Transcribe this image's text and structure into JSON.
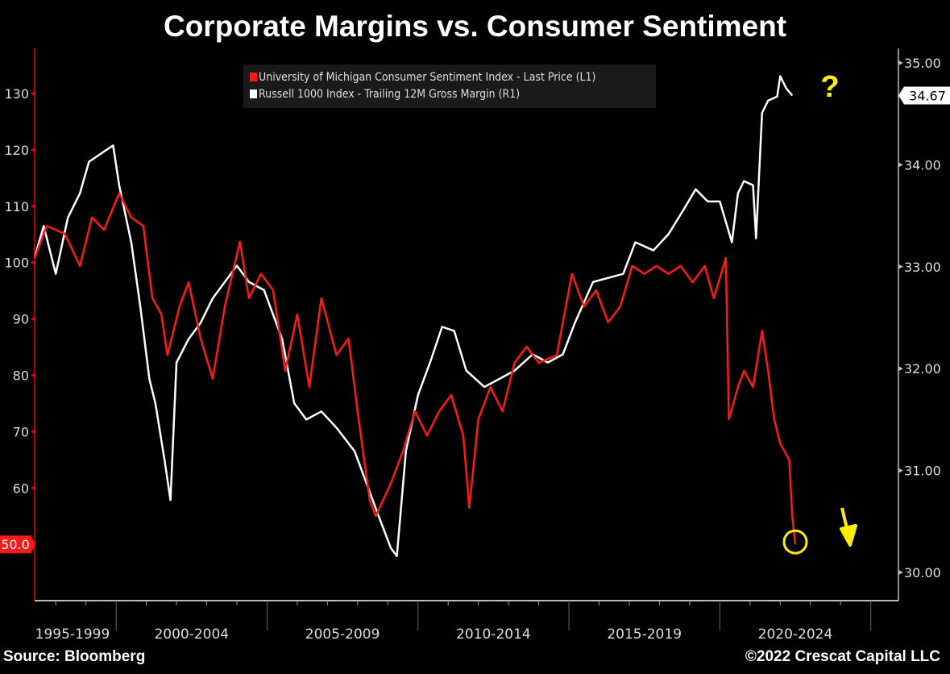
{
  "chart_data": {
    "type": "line",
    "title": "Corporate Margins vs. Consumer Sentiment",
    "source": "Source: Bloomberg",
    "copyright": "©2022 Crescat Capital LLC",
    "legend_placement": "top-center",
    "grid": false,
    "colors": {
      "sentiment": "#ff1a1a",
      "margin": "#ffffff",
      "annotation": "#ffee00",
      "background": "#000000"
    },
    "x_range": [
      1997.3,
      2026.2
    ],
    "x_tick_labels": [
      "1995-1999",
      "2000-2004",
      "2005-2009",
      "2010-2014",
      "2015-2019",
      "2020-2024"
    ],
    "left_axis": {
      "range": [
        40,
        140
      ],
      "ticks": [
        "130",
        "120",
        "110",
        "100",
        "90",
        "80",
        "70",
        "60"
      ],
      "last_value_label": "50.0"
    },
    "right_axis": {
      "range": [
        29.72,
        35.25
      ],
      "ticks": [
        "35.00",
        "34.00",
        "33.00",
        "32.00",
        "31.00",
        "30.00"
      ],
      "last_value_label": "34.67"
    },
    "series": [
      {
        "name": "University of Michigan Consumer Sentiment Index - Last Price (L1)",
        "axis": "left",
        "x": [
          1997.3,
          1997.7,
          1998.3,
          1998.8,
          1999.2,
          1999.6,
          2000.1,
          2000.5,
          2000.9,
          2001.2,
          2001.5,
          2001.7,
          2002.1,
          2002.4,
          2002.8,
          2003.2,
          2003.6,
          2004.1,
          2004.4,
          2004.8,
          2005.2,
          2005.6,
          2006.0,
          2006.4,
          2006.8,
          2007.3,
          2007.7,
          2008.0,
          2008.4,
          2008.6,
          2009.1,
          2009.5,
          2009.9,
          2010.3,
          2010.7,
          2011.1,
          2011.5,
          2011.7,
          2012.0,
          2012.4,
          2012.8,
          2013.2,
          2013.6,
          2014.0,
          2014.6,
          2015.1,
          2015.5,
          2015.9,
          2016.3,
          2016.7,
          2017.1,
          2017.5,
          2017.9,
          2018.3,
          2018.7,
          2019.1,
          2019.5,
          2019.8,
          2020.2,
          2020.3,
          2020.6,
          2020.8,
          2021.1,
          2021.4,
          2021.6,
          2021.8,
          2022.0,
          2022.3,
          2022.4,
          2022.5
        ],
        "y": [
          100.8,
          106.5,
          105.1,
          99.4,
          108,
          105.8,
          112.3,
          108,
          106.5,
          93.7,
          90.8,
          83.6,
          92.2,
          96.5,
          86.5,
          79.4,
          92.2,
          103.7,
          93.7,
          98,
          95.1,
          80.8,
          90.8,
          77.9,
          93.7,
          83.6,
          86.5,
          73.6,
          57.9,
          55.0,
          60.8,
          66.5,
          73.6,
          69.3,
          73.6,
          76.5,
          69.3,
          56.5,
          72.2,
          77.9,
          73.6,
          82.2,
          85.1,
          82.2,
          83.6,
          98,
          92.2,
          95.1,
          89.4,
          92.2,
          99.4,
          98,
          99.4,
          98,
          99.4,
          96.5,
          99.4,
          93.7,
          100.8,
          72.2,
          77.9,
          80.8,
          77.9,
          87.9,
          80.8,
          72.2,
          67.9,
          65.0,
          55.0,
          50.0
        ]
      },
      {
        "name": "Russell 1000 Index - Trailing 12M Gross Margin (R1)",
        "axis": "right",
        "x": [
          1997.3,
          1997.6,
          1998.0,
          1998.4,
          1998.8,
          1999.1,
          1999.5,
          1999.9,
          2000.1,
          2000.5,
          2000.8,
          2001.1,
          2001.3,
          2001.6,
          2001.8,
          2002.0,
          2002.4,
          2002.8,
          2003.2,
          2003.6,
          2004.0,
          2004.4,
          2004.9,
          2005.5,
          2005.9,
          2006.3,
          2006.8,
          2007.3,
          2007.9,
          2008.3,
          2008.7,
          2009.1,
          2009.3,
          2009.6,
          2010.0,
          2010.4,
          2010.8,
          2011.2,
          2011.6,
          2012.2,
          2012.7,
          2013.2,
          2013.8,
          2014.3,
          2014.8,
          2015.2,
          2015.8,
          2016.3,
          2016.8,
          2017.2,
          2017.8,
          2018.3,
          2018.8,
          2019.2,
          2019.6,
          2020.0,
          2020.4,
          2020.6,
          2020.8,
          2021.1,
          2021.2,
          2021.4,
          2021.6,
          2021.9,
          2022.0,
          2022.2,
          2022.4
        ],
        "y": [
          33.09,
          33.4,
          32.93,
          33.48,
          33.72,
          34.03,
          34.11,
          34.19,
          33.8,
          33.24,
          32.61,
          31.9,
          31.66,
          31.11,
          30.71,
          32.06,
          32.29,
          32.45,
          32.69,
          32.85,
          33.01,
          32.85,
          32.77,
          32.29,
          31.66,
          31.5,
          31.58,
          31.42,
          31.19,
          30.87,
          30.55,
          30.24,
          30.16,
          31.19,
          31.74,
          32.06,
          32.41,
          32.37,
          31.98,
          31.82,
          31.9,
          31.98,
          32.14,
          32.06,
          32.14,
          32.45,
          32.85,
          32.89,
          32.93,
          33.24,
          33.16,
          33.32,
          33.56,
          33.76,
          33.64,
          33.64,
          33.24,
          33.72,
          33.84,
          33.8,
          33.28,
          34.51,
          34.63,
          34.67,
          34.87,
          34.75,
          34.68
        ]
      }
    ],
    "annotations": {
      "question_mark": "?",
      "down_arrow": "down-arrow-icon",
      "circle_at": [
        2022.5,
        50.0
      ]
    }
  }
}
